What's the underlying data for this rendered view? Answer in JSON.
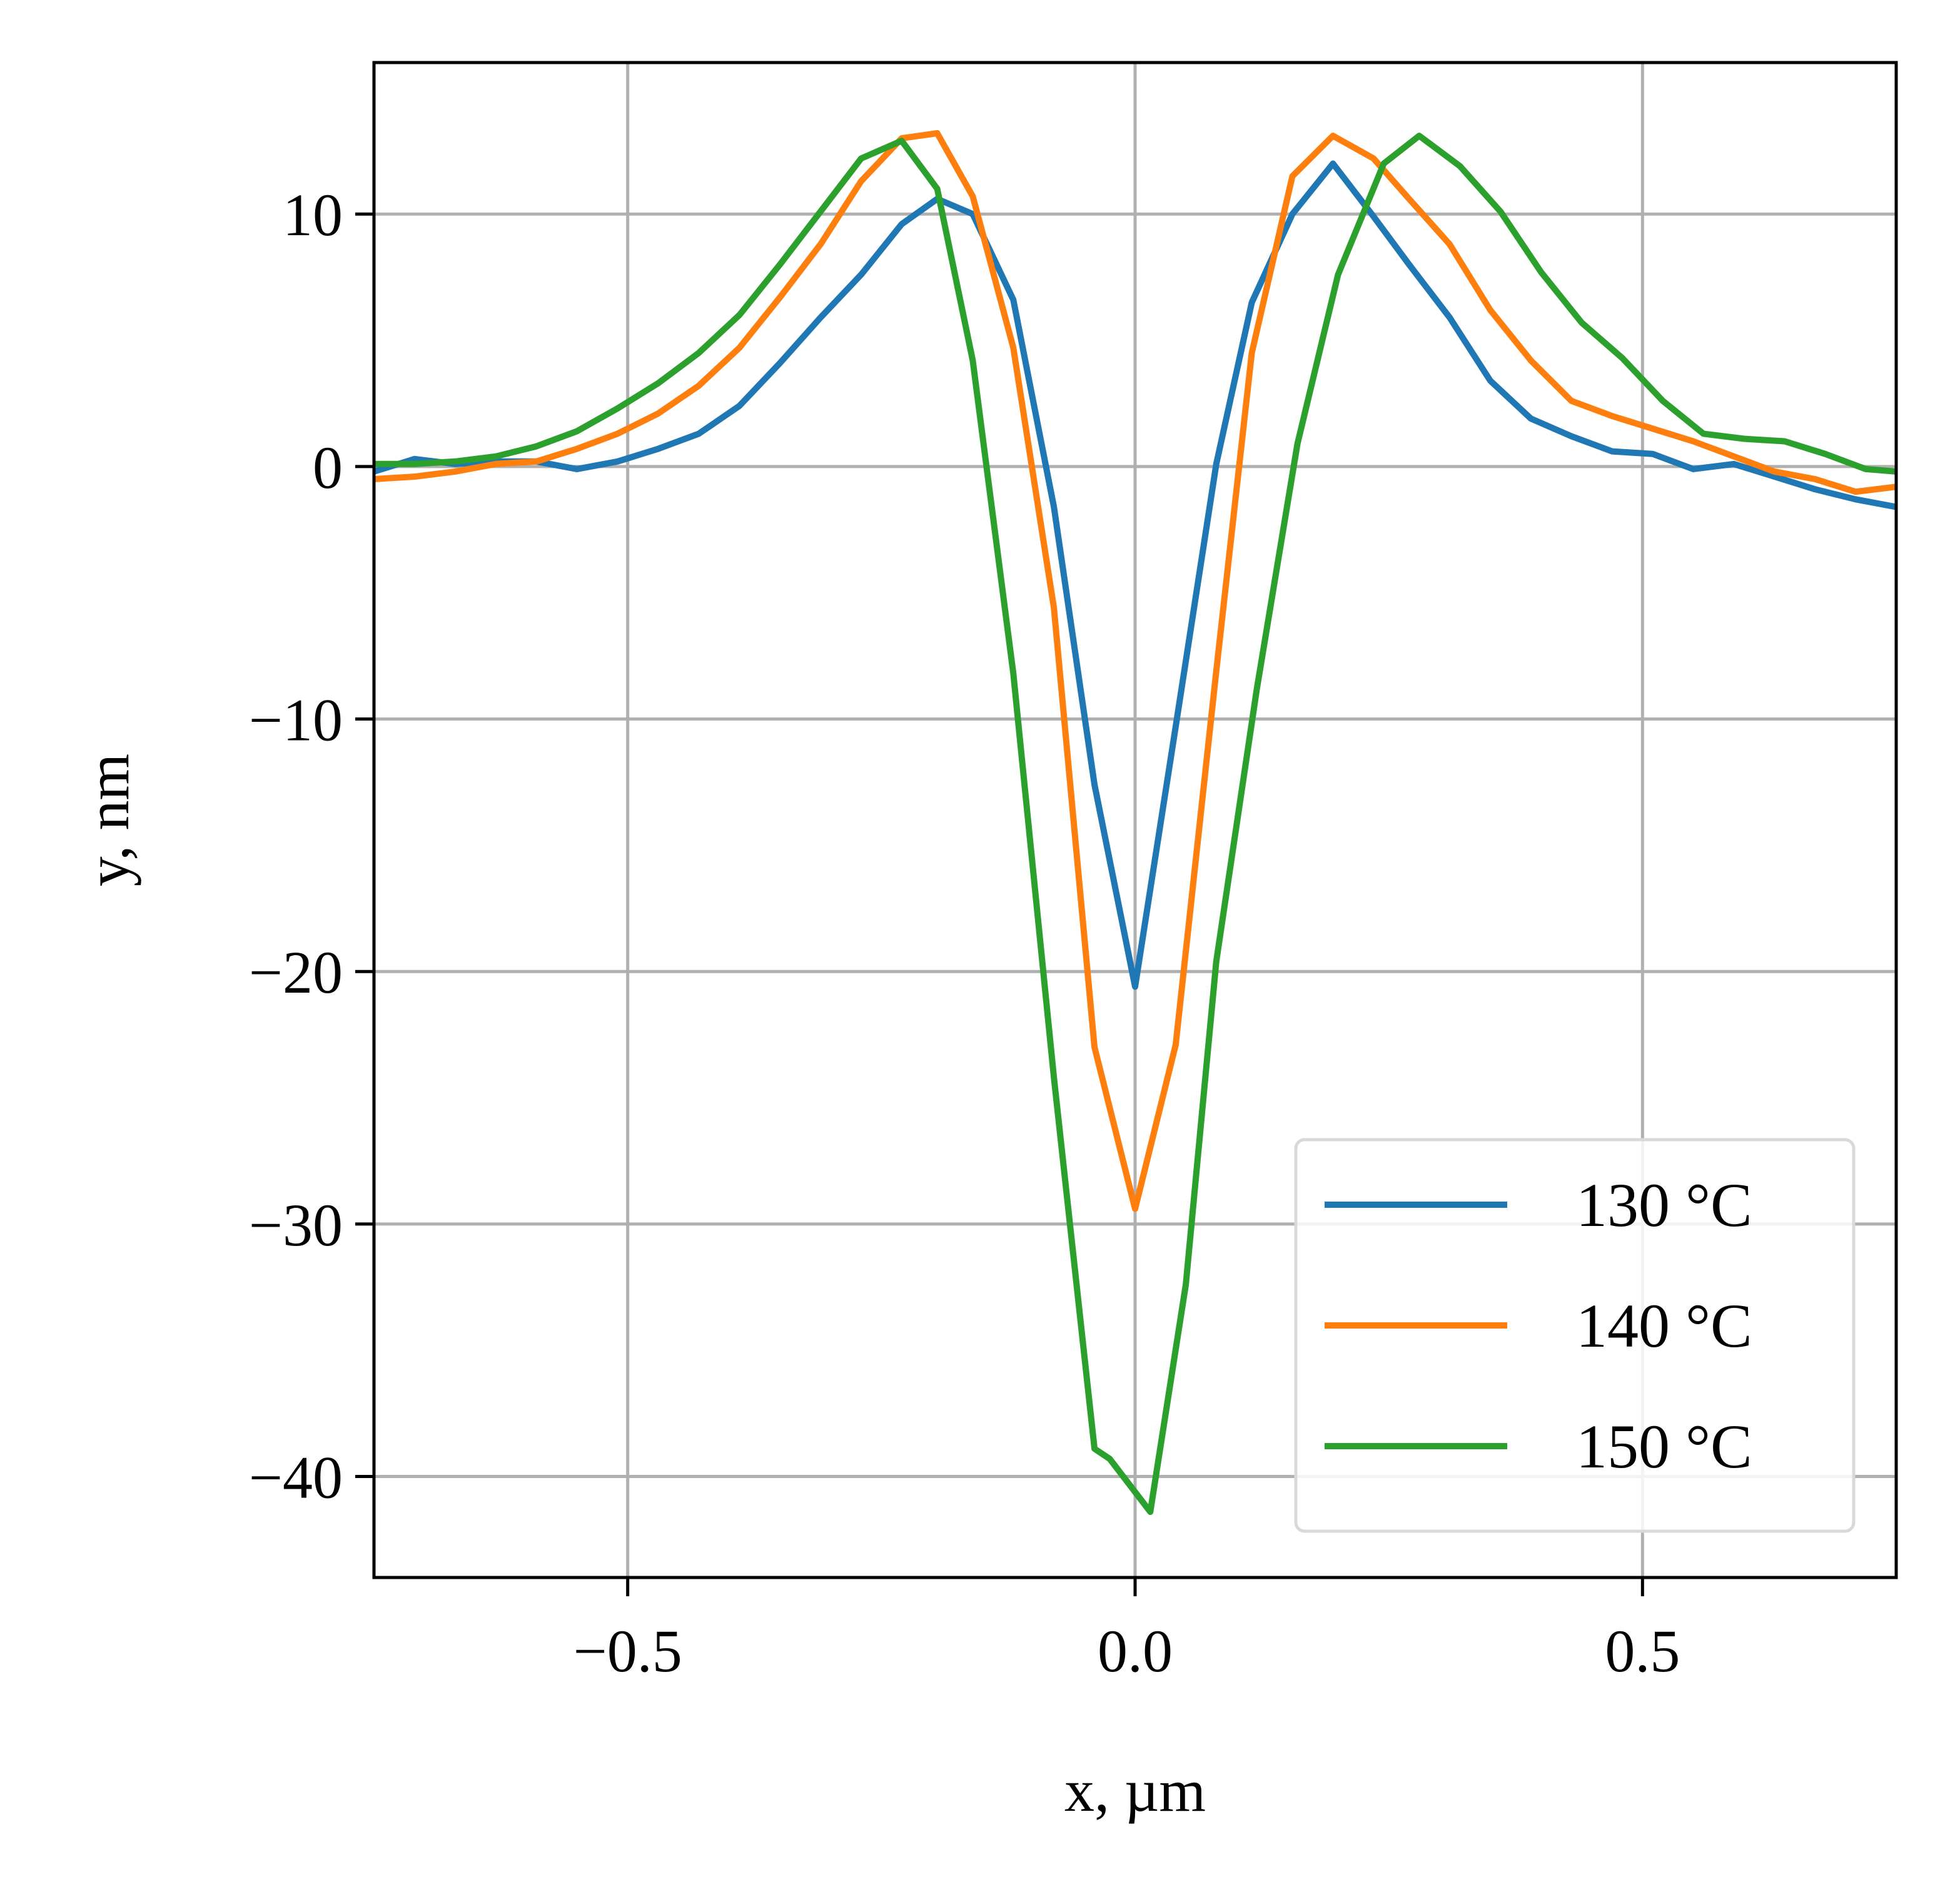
{
  "chart_data": {
    "type": "line",
    "title": "",
    "xlabel": "x, µm",
    "ylabel": "y, nm",
    "xlim": [
      -0.75,
      0.75
    ],
    "ylim": [
      -44,
      16
    ],
    "xticks": [
      -0.5,
      0.0,
      0.5
    ],
    "xtick_labels": [
      "−0.5",
      "0.0",
      "0.5"
    ],
    "yticks": [
      10,
      0,
      -10,
      -20,
      -30,
      -40
    ],
    "ytick_labels": [
      "10",
      "0",
      "−10",
      "−20",
      "−30",
      "−40"
    ],
    "grid": true,
    "legend_position": "lower-right",
    "series": [
      {
        "name": "130 °C",
        "color": "#1f77b4",
        "x": [
          -0.75,
          -0.71,
          -0.67,
          -0.63,
          -0.59,
          -0.55,
          -0.51,
          -0.47,
          -0.43,
          -0.39,
          -0.35,
          -0.31,
          -0.27,
          -0.23,
          -0.195,
          -0.16,
          -0.12,
          -0.08,
          -0.04,
          0.0,
          0.04,
          0.08,
          0.115,
          0.155,
          0.195,
          0.235,
          0.27,
          0.31,
          0.35,
          0.39,
          0.43,
          0.47,
          0.51,
          0.55,
          0.59,
          0.63,
          0.67,
          0.71,
          0.75
        ],
        "y": [
          -0.2,
          0.3,
          0.1,
          0.2,
          0.2,
          -0.1,
          0.2,
          0.7,
          1.3,
          2.4,
          4.1,
          5.9,
          7.6,
          9.6,
          10.6,
          10.0,
          6.6,
          -1.6,
          -12.6,
          -20.6,
          -10.3,
          0.1,
          6.5,
          10.0,
          12.0,
          9.9,
          8.0,
          5.9,
          3.4,
          1.9,
          1.2,
          0.6,
          0.5,
          -0.1,
          0.1,
          -0.4,
          -0.9,
          -1.3,
          -1.6
        ]
      },
      {
        "name": "140 °C",
        "color": "#ff7f0e",
        "x": [
          -0.75,
          -0.71,
          -0.67,
          -0.63,
          -0.59,
          -0.55,
          -0.51,
          -0.47,
          -0.43,
          -0.39,
          -0.35,
          -0.31,
          -0.27,
          -0.23,
          -0.195,
          -0.16,
          -0.12,
          -0.08,
          -0.04,
          0.0,
          0.04,
          0.08,
          0.115,
          0.155,
          0.195,
          0.235,
          0.27,
          0.31,
          0.35,
          0.39,
          0.43,
          0.47,
          0.51,
          0.55,
          0.59,
          0.63,
          0.67,
          0.71,
          0.75
        ],
        "y": [
          -0.5,
          -0.4,
          -0.2,
          0.1,
          0.2,
          0.7,
          1.3,
          2.1,
          3.2,
          4.7,
          6.7,
          8.8,
          11.3,
          13.0,
          13.2,
          10.7,
          4.7,
          -5.6,
          -23.0,
          -29.4,
          -22.9,
          -8.1,
          4.5,
          11.5,
          13.1,
          12.2,
          10.6,
          8.8,
          6.2,
          4.2,
          2.6,
          2.0,
          1.5,
          1.0,
          0.4,
          -0.2,
          -0.5,
          -1.0,
          -0.8
        ]
      },
      {
        "name": "150 °C",
        "color": "#2ca02c",
        "x": [
          -0.75,
          -0.71,
          -0.67,
          -0.63,
          -0.59,
          -0.55,
          -0.51,
          -0.47,
          -0.43,
          -0.39,
          -0.35,
          -0.31,
          -0.27,
          -0.23,
          -0.195,
          -0.16,
          -0.12,
          -0.08,
          -0.04,
          -0.025,
          0.015,
          0.05,
          0.08,
          0.12,
          0.16,
          0.2,
          0.245,
          0.28,
          0.32,
          0.36,
          0.4,
          0.44,
          0.48,
          0.52,
          0.56,
          0.6,
          0.64,
          0.68,
          0.72,
          0.75
        ],
        "y": [
          0.1,
          0.1,
          0.2,
          0.4,
          0.8,
          1.4,
          2.3,
          3.3,
          4.5,
          6.0,
          8.0,
          10.1,
          12.2,
          12.9,
          11.0,
          4.2,
          -8.2,
          -24.2,
          -38.9,
          -39.3,
          -41.4,
          -32.4,
          -19.6,
          -8.8,
          0.9,
          7.6,
          12.0,
          13.1,
          11.9,
          10.1,
          7.7,
          5.7,
          4.3,
          2.6,
          1.3,
          1.1,
          1.0,
          0.5,
          -0.1,
          -0.2
        ]
      }
    ]
  }
}
